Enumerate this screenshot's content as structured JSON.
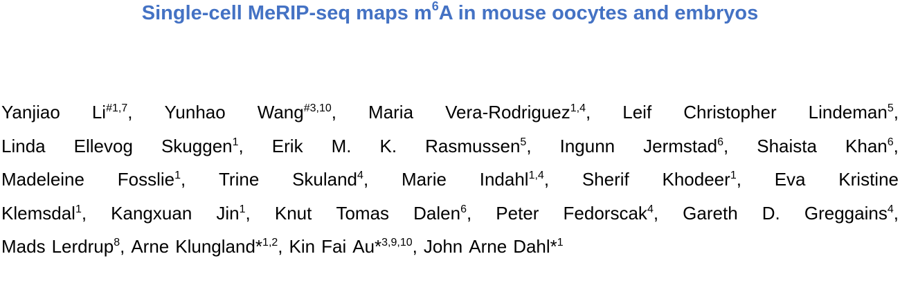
{
  "title": {
    "color": "#4472C4",
    "before": "Single-cell MeRIP-seq maps m",
    "superscript": "6",
    "after": "A in mouse oocytes and embryos"
  },
  "author_lines": [
    [
      {
        "t": "Yanjiao",
        "s": ""
      },
      {
        "t": "Li",
        "s": "#1,7",
        "p": ","
      },
      {
        "t": "Yunhao",
        "s": ""
      },
      {
        "t": "Wang",
        "s": "#3,10",
        "p": ","
      },
      {
        "t": "Maria",
        "s": ""
      },
      {
        "t": "Vera-Rodriguez",
        "s": "1,4",
        "p": ","
      },
      {
        "t": "Leif",
        "s": ""
      },
      {
        "t": "Christopher",
        "s": ""
      },
      {
        "t": "Lindeman",
        "s": "5",
        "p": ","
      }
    ],
    [
      {
        "t": "Linda",
        "s": ""
      },
      {
        "t": "Ellevog",
        "s": ""
      },
      {
        "t": "Skuggen",
        "s": "1",
        "p": ","
      },
      {
        "t": "Erik",
        "s": ""
      },
      {
        "t": "M.",
        "s": ""
      },
      {
        "t": "K.",
        "s": ""
      },
      {
        "t": "Rasmussen",
        "s": "5",
        "p": ","
      },
      {
        "t": "Ingunn",
        "s": ""
      },
      {
        "t": "Jermstad",
        "s": "6",
        "p": ","
      },
      {
        "t": "Shaista",
        "s": ""
      },
      {
        "t": "Khan",
        "s": "6",
        "p": ","
      }
    ],
    [
      {
        "t": "Madeleine",
        "s": ""
      },
      {
        "t": "Fosslie",
        "s": "1",
        "p": ","
      },
      {
        "t": "Trine",
        "s": ""
      },
      {
        "t": "Skuland",
        "s": "4",
        "p": ","
      },
      {
        "t": "Marie",
        "s": ""
      },
      {
        "t": "Indahl",
        "s": "1,4",
        "p": ","
      },
      {
        "t": "Sherif",
        "s": ""
      },
      {
        "t": "Khodeer",
        "s": "1",
        "p": ","
      },
      {
        "t": "Eva",
        "s": ""
      },
      {
        "t": "Kristine",
        "s": ""
      }
    ],
    [
      {
        "t": "Klemsdal",
        "s": "1",
        "p": ","
      },
      {
        "t": "Kangxuan",
        "s": ""
      },
      {
        "t": "Jin",
        "s": "1",
        "p": ","
      },
      {
        "t": "Knut",
        "s": ""
      },
      {
        "t": "Tomas",
        "s": ""
      },
      {
        "t": "Dalen",
        "s": "6",
        "p": ","
      },
      {
        "t": "Peter",
        "s": ""
      },
      {
        "t": "Fedorscak",
        "s": "4",
        "p": ","
      },
      {
        "t": "Gareth",
        "s": ""
      },
      {
        "t": "D.",
        "s": ""
      },
      {
        "t": "Greggains",
        "s": "4",
        "p": ","
      }
    ],
    [
      {
        "t": "Mads",
        "s": ""
      },
      {
        "t": "Lerdrup",
        "s": "8",
        "p": ","
      },
      {
        "t": "Arne",
        "s": ""
      },
      {
        "t": "Klungland*",
        "s": "1,2",
        "p": ","
      },
      {
        "t": "Kin",
        "s": ""
      },
      {
        "t": "Fai",
        "s": ""
      },
      {
        "t": "Au*",
        "s": "3,9,10",
        "p": ","
      },
      {
        "t": "John",
        "s": ""
      },
      {
        "t": "Arne",
        "s": ""
      },
      {
        "t": "Dahl*",
        "s": "1"
      }
    ]
  ]
}
